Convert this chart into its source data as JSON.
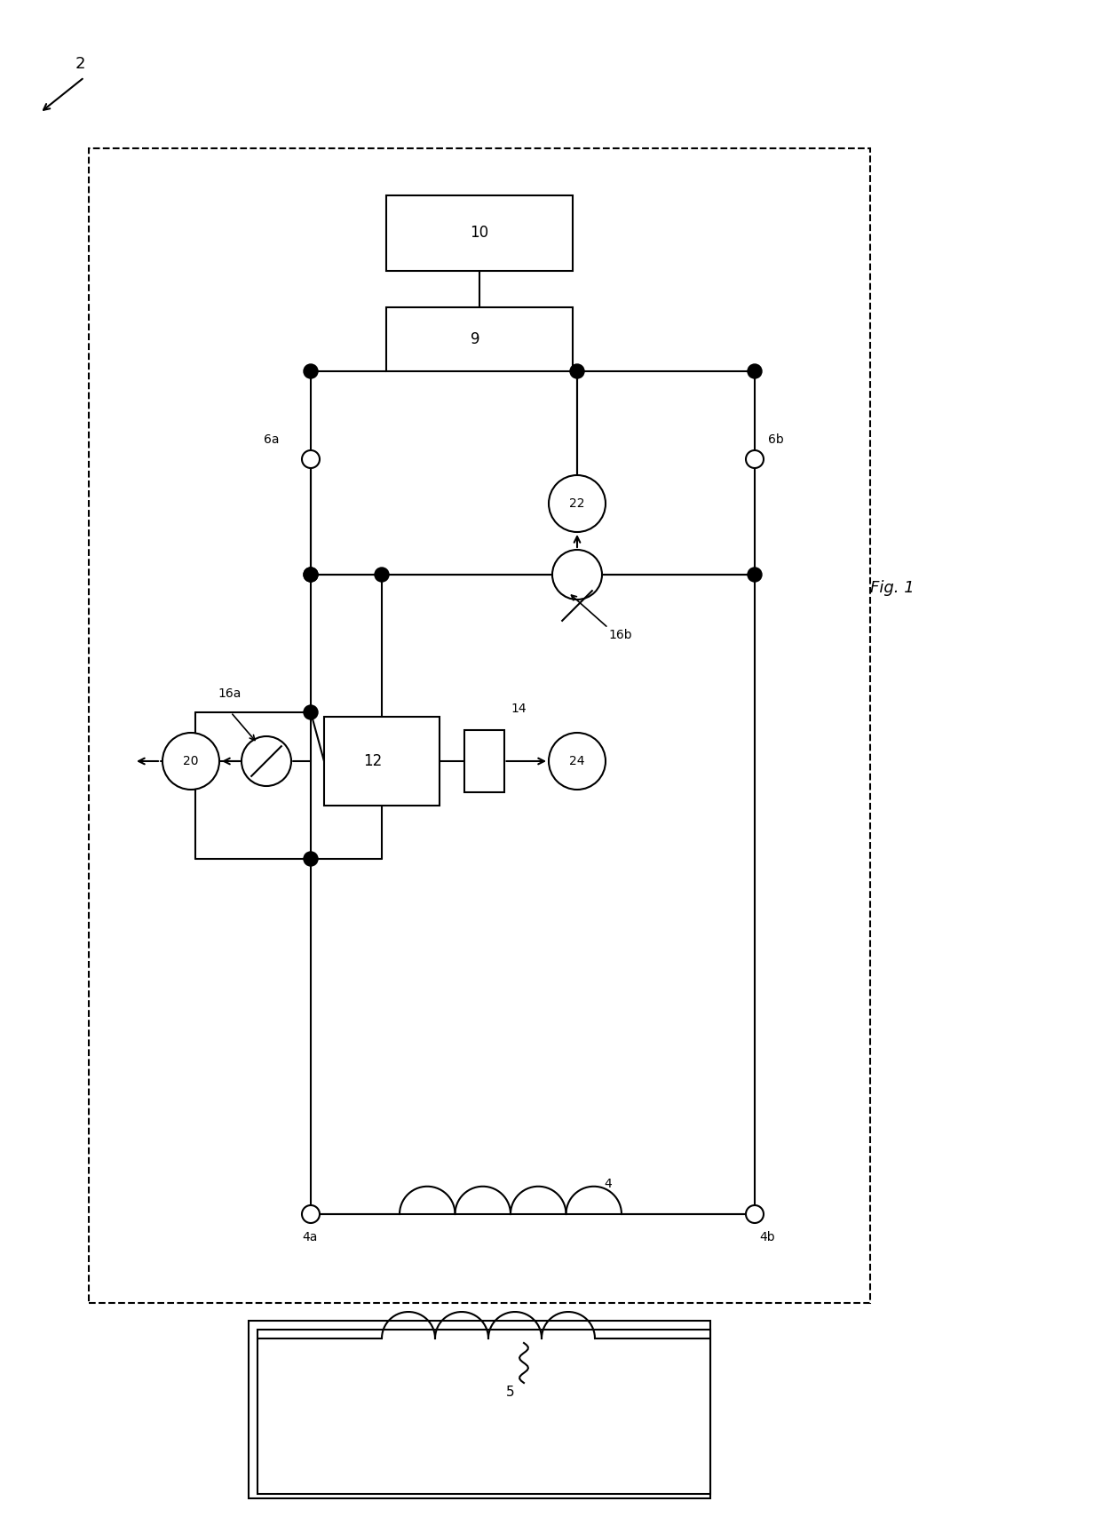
{
  "bg_color": "#ffffff",
  "line_color": "#000000",
  "fig_width": 12.4,
  "fig_height": 17.17,
  "title": "Fig. 1",
  "label_2": "2",
  "label_4": "4",
  "label_4a": "4a",
  "label_4b": "4b",
  "label_5": "5",
  "label_6a": "6a",
  "label_6b": "6b",
  "label_9": "9",
  "label_10": "10",
  "label_12": "12",
  "label_14": "14",
  "label_16a": "16a",
  "label_16b": "16b",
  "label_20": "20",
  "label_22": "22",
  "label_24": "24"
}
